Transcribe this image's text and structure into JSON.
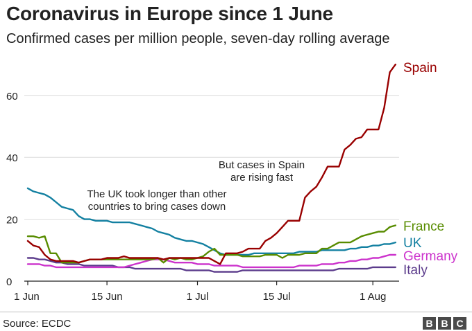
{
  "chart_data": {
    "type": "line",
    "title": "Coronavirus in Europe since 1 June",
    "subtitle": "Confirmed cases per million people, seven-day rolling average",
    "xlabel": "",
    "ylabel": "",
    "ylim": [
      0,
      72
    ],
    "yticks": [
      0,
      20,
      40,
      60
    ],
    "xticks": [
      {
        "day": 0,
        "label": "1 Jun"
      },
      {
        "day": 14,
        "label": "15 Jun"
      },
      {
        "day": 30,
        "label": "1 Jul"
      },
      {
        "day": 44,
        "label": "15 Jul"
      },
      {
        "day": 61,
        "label": "1 Aug"
      }
    ],
    "x_start_label": "1 Jun",
    "series": [
      {
        "name": "Spain",
        "color": "#990000",
        "values": [
          13,
          11.5,
          11,
          8.5,
          7,
          6.5,
          6.5,
          6.5,
          6.5,
          6,
          6.5,
          7,
          7,
          7,
          7.5,
          7.5,
          7.5,
          8,
          7.5,
          7.5,
          7.5,
          7.5,
          7.5,
          7.5,
          7,
          7.5,
          7.5,
          7.5,
          7.5,
          7.5,
          7.5,
          7.5,
          7.5,
          6.5,
          5.5,
          9,
          9,
          9,
          9.5,
          10.5,
          10.5,
          10.5,
          13,
          14,
          15.5,
          17.5,
          19.5,
          19.5,
          19.5,
          27,
          29,
          30.5,
          33.5,
          37,
          37,
          37,
          42.5,
          44,
          46,
          46.5,
          49,
          49,
          49,
          56,
          67.5,
          70
        ]
      },
      {
        "name": "France",
        "color": "#588c00",
        "values": [
          14.5,
          14.5,
          14,
          14.5,
          9,
          9,
          6,
          6,
          6,
          6,
          6.5,
          7,
          7,
          7,
          7,
          7,
          7,
          7,
          7,
          7,
          7,
          7,
          7,
          7.5,
          6,
          7.5,
          7,
          7.5,
          7,
          7,
          7.5,
          8,
          9.5,
          10.5,
          8.5,
          8.5,
          8.5,
          8.5,
          8,
          8,
          8,
          8,
          8.5,
          8.5,
          8.5,
          7.5,
          8.5,
          8.5,
          8.5,
          9,
          9,
          9,
          10.5,
          10.5,
          11.5,
          12.5,
          12.5,
          12.5,
          13.5,
          14.5,
          15,
          15.5,
          16,
          16,
          17.5,
          18
        ]
      },
      {
        "name": "UK",
        "color": "#1380a1",
        "values": [
          30,
          29,
          28.5,
          28,
          27,
          25.5,
          24,
          23.5,
          23,
          21,
          20,
          20,
          19.5,
          19.5,
          19.5,
          19,
          19,
          19,
          19,
          18.5,
          18,
          17.5,
          17,
          16,
          15.5,
          15,
          14,
          13.5,
          13,
          13,
          12.5,
          12,
          11,
          10,
          9,
          8.5,
          8.5,
          8.5,
          8.5,
          8.5,
          9,
          9,
          9,
          9,
          9,
          9,
          9,
          9,
          9.5,
          9.5,
          9.5,
          9.5,
          10,
          10,
          10,
          10,
          10,
          10.5,
          10.5,
          11,
          11,
          11.5,
          11.5,
          12,
          12,
          12.5
        ]
      },
      {
        "name": "Germany",
        "color": "#cc33cc",
        "values": [
          5.5,
          5.5,
          5.5,
          5,
          5,
          4.5,
          4.5,
          4.5,
          4.5,
          4.5,
          4.5,
          4.5,
          4.5,
          4.5,
          4.5,
          4.5,
          4.5,
          4.5,
          5,
          5.5,
          6,
          6.5,
          7,
          7,
          7,
          6.5,
          6,
          6,
          6,
          6,
          5.5,
          5.5,
          5.5,
          5,
          5,
          5,
          5,
          5,
          4.5,
          4.5,
          4.5,
          4.5,
          4.5,
          4.5,
          4.5,
          4.5,
          4.5,
          4.5,
          5,
          5,
          5,
          5,
          5.5,
          5.5,
          5.5,
          6,
          6,
          6.5,
          6.5,
          7,
          7,
          7.5,
          7.5,
          8,
          8.5,
          8.5
        ]
      },
      {
        "name": "Italy",
        "color": "#5c3c8c",
        "values": [
          7.5,
          7.5,
          7,
          7,
          6.5,
          6,
          6,
          5.5,
          5.5,
          5.5,
          5,
          5,
          5,
          5,
          5,
          5,
          4.5,
          4.5,
          4.5,
          4,
          4,
          4,
          4,
          4,
          4,
          4,
          4,
          4,
          3.5,
          3.5,
          3.5,
          3.5,
          3.5,
          3,
          3,
          3,
          3,
          3,
          3.5,
          3.5,
          3.5,
          3.5,
          3.5,
          3.5,
          3.5,
          3.5,
          3.5,
          3.5,
          3.5,
          3.5,
          3.5,
          3.5,
          3.5,
          3.5,
          3.5,
          4,
          4,
          4,
          4,
          4,
          4,
          4.5,
          4.5,
          4.5,
          4.5,
          4.5
        ]
      }
    ],
    "annotations": [
      {
        "lines": [
          "The UK took longer than other",
          "countries to bring cases down"
        ],
        "at_day": 14.5,
        "at_value": 27.5
      },
      {
        "lines": [
          "But cases in Spain",
          "are rising fast"
        ],
        "at_day": 39.5,
        "at_value": 38
      }
    ]
  },
  "footer": {
    "source": "Source: ECDC",
    "logo": [
      "B",
      "B",
      "C"
    ]
  }
}
